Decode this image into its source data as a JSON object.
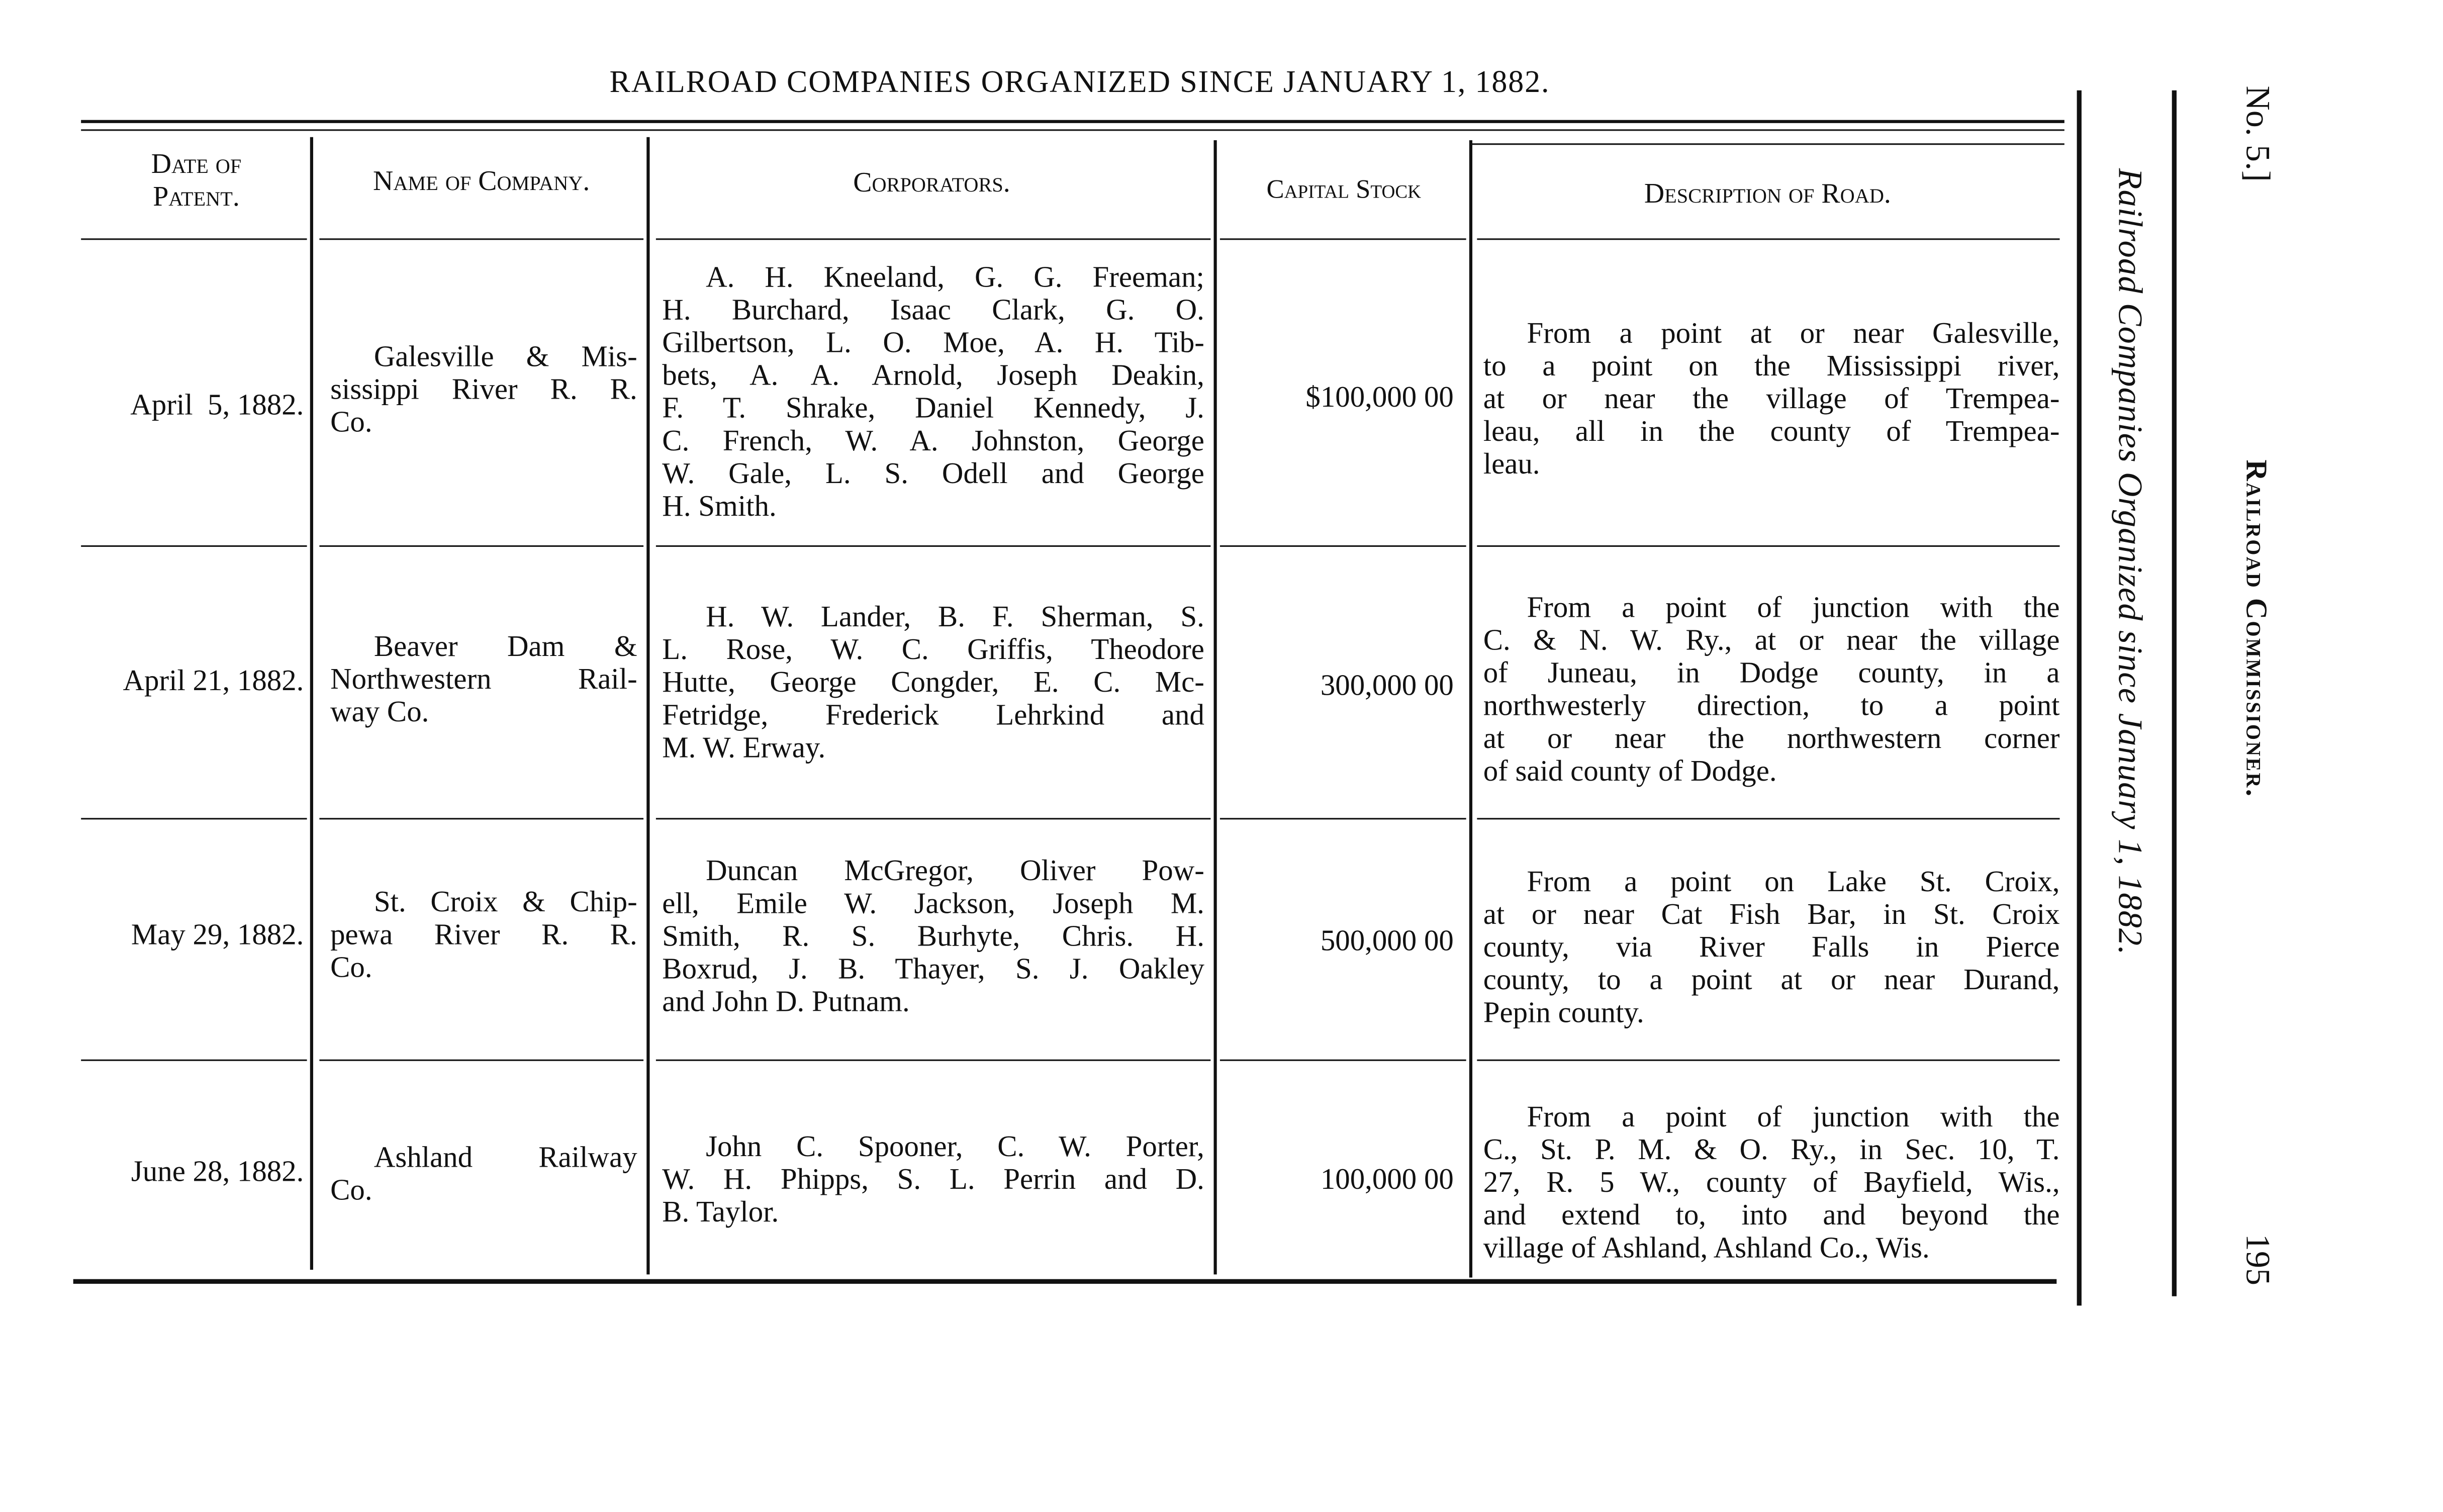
{
  "title": "RAILROAD COMPANIES ORGANIZED SINCE JANUARY 1, 1882.",
  "side": {
    "running_title": "Railroad Companies Organized since January 1, 1882.",
    "doc_number": "No. 5.]",
    "header": "Railroad Commissioner.",
    "page_number": "195"
  },
  "columns": {
    "date_line1": "Date of",
    "date_line2": "Patent.",
    "name": "Name of Company.",
    "corporators": "Corporators.",
    "capital": "Capital Stock",
    "description": "Description of Road."
  },
  "rows": [
    {
      "date": "April  5, 1882.",
      "name": [
        "Galesville & Mis-",
        "sissippi River R. R.",
        "Co."
      ],
      "corporators": [
        "A. H. Kneeland, G. G. Freeman;",
        "H. Burchard, Isaac Clark, G. O.",
        "Gilbertson, L. O. Moe, A. H. Tib-",
        "bets, A. A. Arnold, Joseph Deakin,",
        "F. T. Shrake, Daniel Kennedy, J.",
        "C. French, W. A. Johnston, George",
        "W. Gale, L. S. Odell and George",
        "H. Smith."
      ],
      "capital": "$100,000 00",
      "description": [
        "From a point at or near Galesville,",
        "to a point on the Mississippi river,",
        "at or near the village of Trempea-",
        "leau, all in the county of Trempea-",
        "leau."
      ]
    },
    {
      "date": "April 21, 1882.",
      "name": [
        "Beaver Dam &",
        "Northwestern Rail-",
        "way Co."
      ],
      "corporators": [
        "H. W. Lander, B. F. Sherman, S.",
        "L. Rose, W. C. Griffis, Theodore",
        "Hutte, George Congder, E. C. Mc-",
        "Fetridge, Frederick Lehrkind and",
        "M. W. Erway."
      ],
      "capital": "300,000 00",
      "description": [
        "From a point of junction with the",
        "C. & N. W. Ry., at or near the village",
        "of Juneau, in Dodge county, in a",
        "northwesterly direction, to a point",
        "at or near the northwestern corner",
        "of said county of Dodge."
      ]
    },
    {
      "date": "May 29, 1882.",
      "name": [
        "St. Croix & Chip-",
        "pewa River R. R.",
        "Co."
      ],
      "corporators": [
        "Duncan McGregor, Oliver Pow-",
        "ell, Emile W. Jackson, Joseph M.",
        "Smith, R. S. Burhyte, Chris. H.",
        "Boxrud, J. B. Thayer, S. J. Oakley",
        "and John D. Putnam."
      ],
      "capital": "500,000 00",
      "description": [
        "From a point on Lake St. Croix,",
        "at or near Cat Fish Bar, in St. Croix",
        "county, via River Falls in Pierce",
        "county, to a point at or near Durand,",
        "Pepin county."
      ]
    },
    {
      "date": "June 28, 1882.",
      "name": [
        "Ashland Railway",
        "Co."
      ],
      "corporators": [
        "John C. Spooner, C. W. Porter,",
        "W. H. Phipps, S. L. Perrin and D.",
        "B. Taylor."
      ],
      "capital": "100,000 00",
      "description": [
        "From a point of junction with the",
        "C., St. P. M. & O. Ry., in Sec. 10, T.",
        "27, R. 5 W., county of Bayfield, Wis.,",
        "and extend to, into and beyond the",
        "village of Ashland, Ashland Co., Wis."
      ]
    }
  ]
}
